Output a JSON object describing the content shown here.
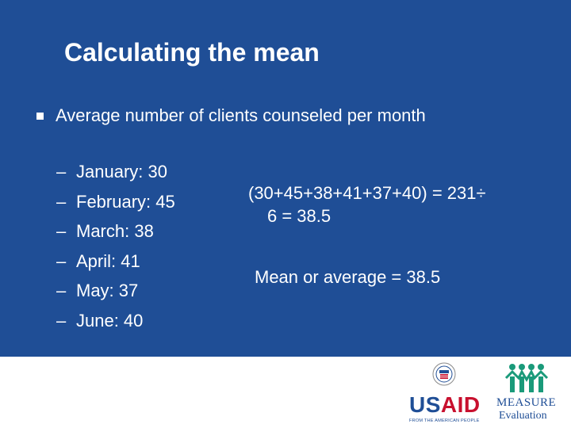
{
  "title": "Calculating the mean",
  "bullet": "Average number of clients counseled per month",
  "months": [
    {
      "dash": "–",
      "text": "January: 30"
    },
    {
      "dash": "–",
      "text": "February: 45"
    },
    {
      "dash": "–",
      "text": "March: 38"
    },
    {
      "dash": "–",
      "text": "April: 41"
    },
    {
      "dash": "–",
      "text": "May: 37"
    },
    {
      "dash": "–",
      "text": "June: 40"
    }
  ],
  "calculation": {
    "line1": "(30+45+38+41+37+40) = 231÷",
    "line2": "6 = 38.5"
  },
  "mean_statement": "Mean or average = 38.5",
  "logos": {
    "usaid_us": "US",
    "usaid_aid": "AID",
    "usaid_tagline": "FROM THE AMERICAN PEOPLE",
    "measure": "MEASURE",
    "evaluation": "Evaluation"
  },
  "colors": {
    "background": "#1f4e96",
    "text": "#ffffff",
    "usaid_red": "#c8102e",
    "measure_green": "#1a9a7a"
  }
}
